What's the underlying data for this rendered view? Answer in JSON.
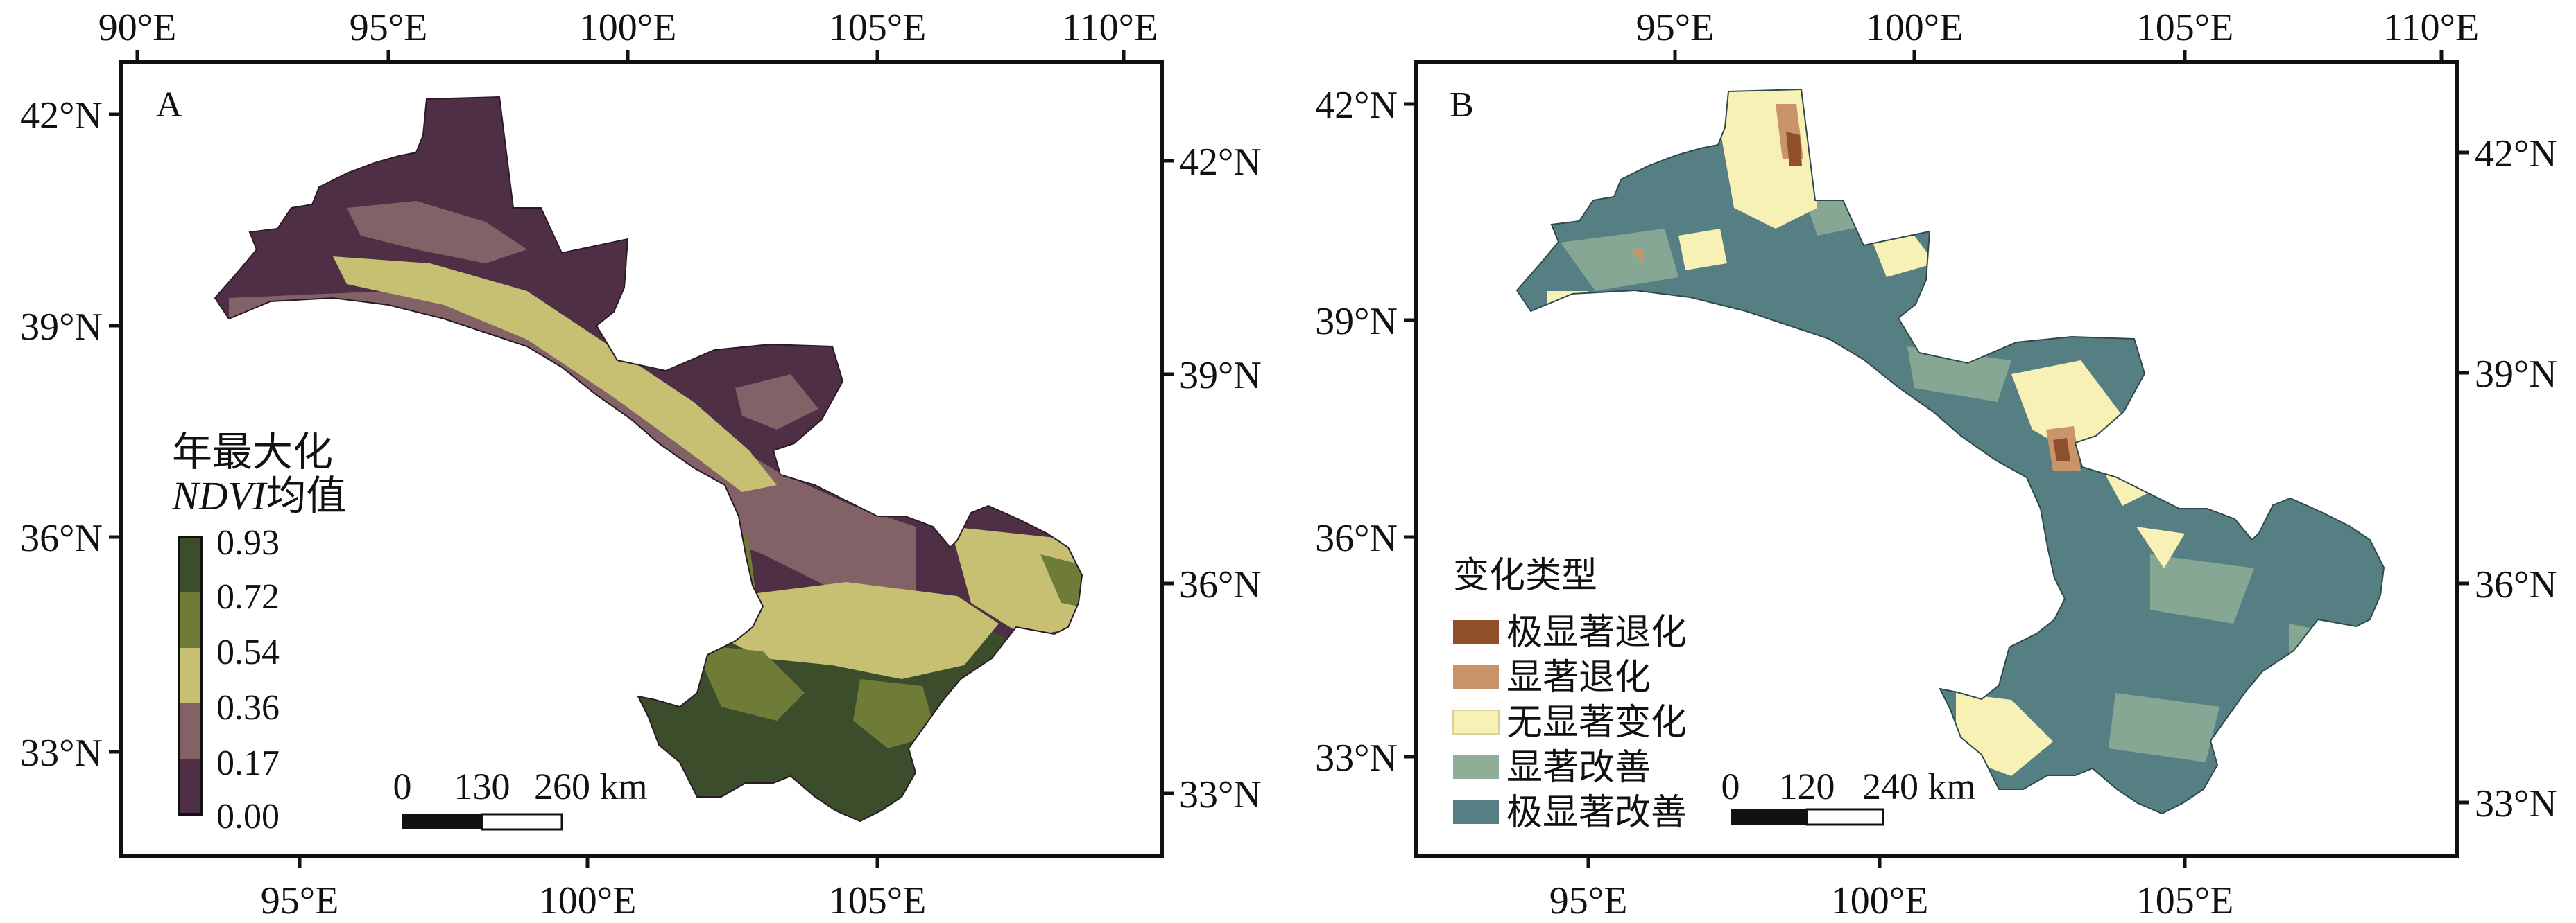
{
  "panelA": {
    "letter": "A",
    "top_ticks": [
      "90°E",
      "95°E",
      "100°E",
      "105°E",
      "110°E"
    ],
    "bottom_ticks": [
      "95°E",
      "100°E",
      "105°E"
    ],
    "left_ticks": [
      "42°N",
      "39°N",
      "36°N",
      "33°N"
    ],
    "right_ticks": [
      "42°N",
      "39°N",
      "36°N",
      "33°N"
    ],
    "legend_title_line1": "年最大化",
    "legend_title_italic": "NDVI",
    "legend_title_suffix": "均值",
    "legend_values": [
      "0.93",
      "0.72",
      "0.54",
      "0.36",
      "0.17",
      "0.00"
    ],
    "legend_colors": [
      "#3c4d2b",
      "#6f7c38",
      "#c7bf72",
      "#826266",
      "#4e2f45"
    ],
    "scale_labels": [
      "0",
      "130",
      "260 km"
    ]
  },
  "panelB": {
    "letter": "B",
    "top_ticks": [
      "95°E",
      "100°E",
      "105°E",
      "110°E"
    ],
    "bottom_ticks": [
      "95°E",
      "100°E",
      "105°E"
    ],
    "left_ticks": [
      "42°N",
      "39°N",
      "36°N",
      "33°N"
    ],
    "right_ticks": [
      "42°N",
      "39°N",
      "36°N",
      "33°N"
    ],
    "legend_title": "变化类型",
    "legend_items": [
      {
        "label": "极显著退化",
        "color": "#8f4f2b"
      },
      {
        "label": "显著退化",
        "color": "#c9946a"
      },
      {
        "label": "无显著变化",
        "color": "#f7f1b5"
      },
      {
        "label": "显著改善",
        "color": "#8fae98"
      },
      {
        "label": "极显著改善",
        "color": "#557f82"
      }
    ],
    "scale_labels": [
      "0",
      "120",
      "240 km"
    ]
  }
}
